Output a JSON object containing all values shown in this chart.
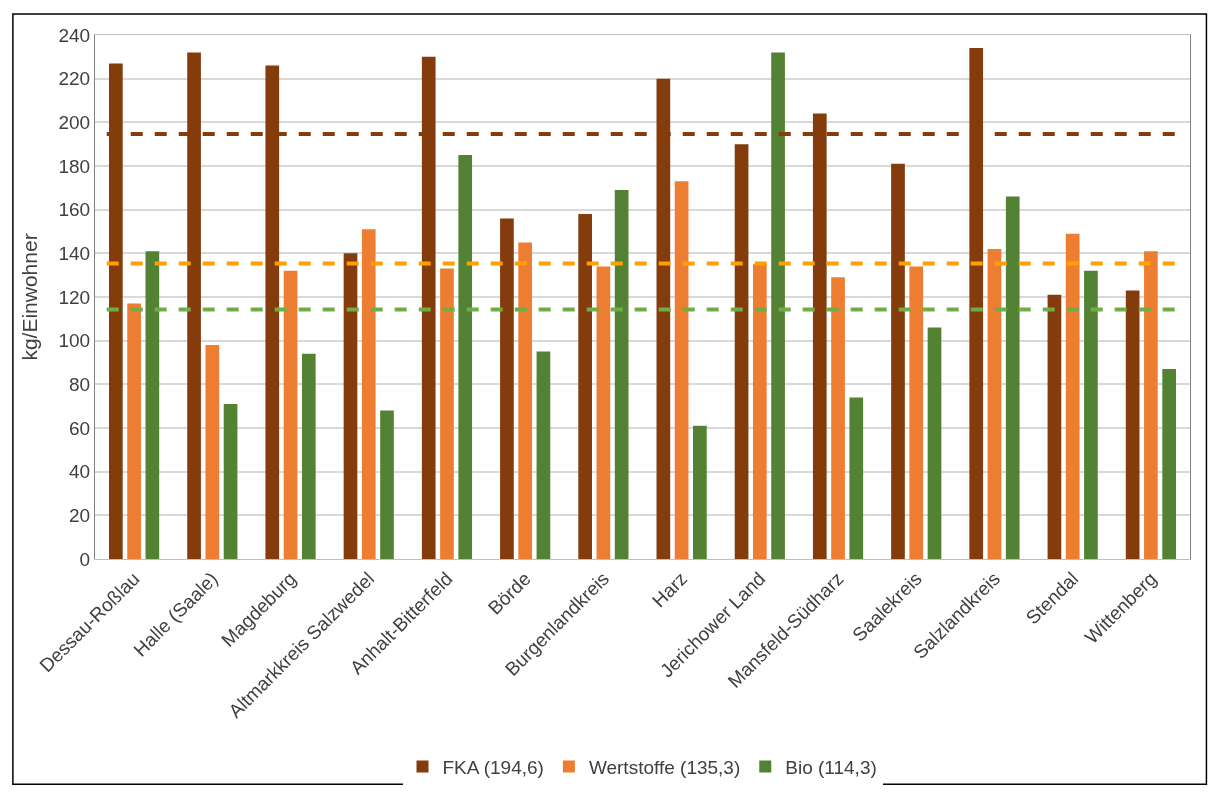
{
  "chart_data": {
    "type": "bar",
    "ylabel": "kg/Einwohner",
    "categories": [
      "Dessau-Roßlau",
      "Halle (Saale)",
      "Magdeburg",
      "Altmarkkreis Salzwedel",
      "Anhalt-Bitterfeld",
      "Börde",
      "Burgenlandkreis",
      "Harz",
      "Jerichower Land",
      "Mansfeld-Südharz",
      "Saalekreis",
      "Salzlandkreis",
      "Stendal",
      "Wittenberg"
    ],
    "series": [
      {
        "name": "FKA (194,6)",
        "color": "#843c0c",
        "values": [
          227,
          232,
          226,
          140,
          230,
          156,
          158,
          220,
          190,
          204,
          181,
          234,
          121,
          123
        ]
      },
      {
        "name": "Wertstoffe (135,3)",
        "color": "#ed7d31",
        "values": [
          117,
          98,
          132,
          151,
          133,
          145,
          134,
          173,
          135,
          129,
          134,
          142,
          149,
          141
        ]
      },
      {
        "name": "Bio (114,3)",
        "color": "#548235",
        "values": [
          141,
          71,
          94,
          68,
          185,
          95,
          169,
          61,
          232,
          74,
          106,
          166,
          132,
          87
        ]
      }
    ],
    "ref_lines": [
      {
        "axis": "y",
        "value": 194.6,
        "color": "#843c0c",
        "line_style": "dashed"
      },
      {
        "axis": "y",
        "value": 135.3,
        "color": "#ffa000",
        "line_style": "dashed"
      },
      {
        "axis": "y",
        "value": 114.3,
        "color": "#70ad47",
        "line_style": "dashed"
      }
    ],
    "ylim": [
      0,
      240
    ],
    "yticks": [
      0,
      20,
      40,
      60,
      80,
      100,
      120,
      140,
      160,
      180,
      200,
      220,
      240
    ],
    "grid": "y",
    "legend": "bottom"
  }
}
